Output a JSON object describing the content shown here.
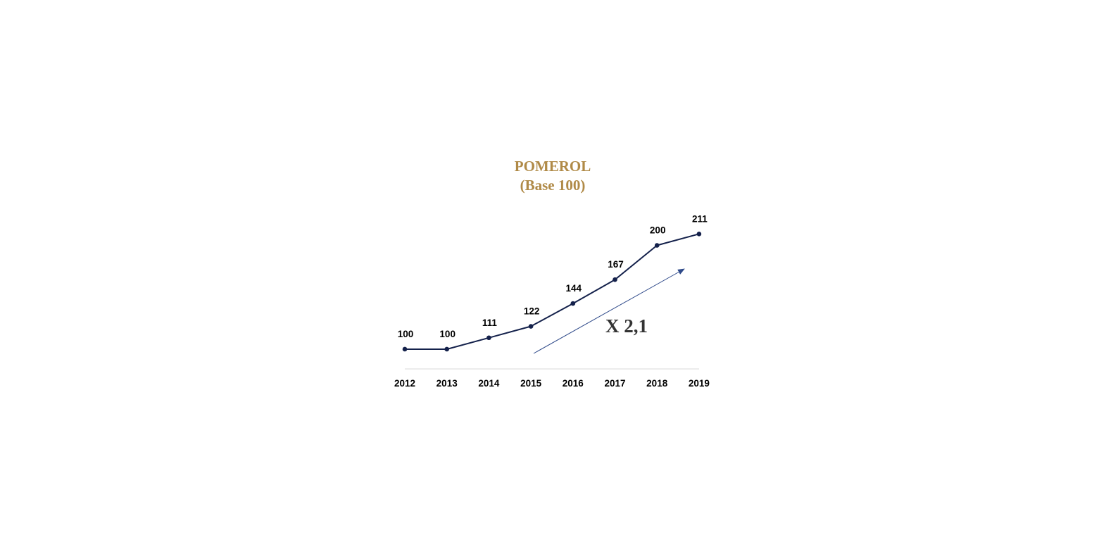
{
  "chart_data": {
    "type": "line",
    "title": "POMEROL",
    "subtitle": "(Base 100)",
    "categories": [
      "2012",
      "2013",
      "2014",
      "2015",
      "2016",
      "2017",
      "2018",
      "2019"
    ],
    "series": [
      {
        "values": [
          100,
          100,
          111,
          122,
          144,
          167,
          200,
          211
        ]
      }
    ],
    "data_labels": [
      "100",
      "100",
      "111",
      "122",
      "144",
      "167",
      "200",
      "211"
    ],
    "annotation": "X 2,1",
    "ylim": [
      81,
      220
    ],
    "grid": false,
    "legend": "none"
  },
  "colors": {
    "title": "#B08A47",
    "line": "#14214B",
    "annotation_arrow": "#2F4A8A",
    "annotation_text": "#333333",
    "axis": "#D9D9D9"
  }
}
